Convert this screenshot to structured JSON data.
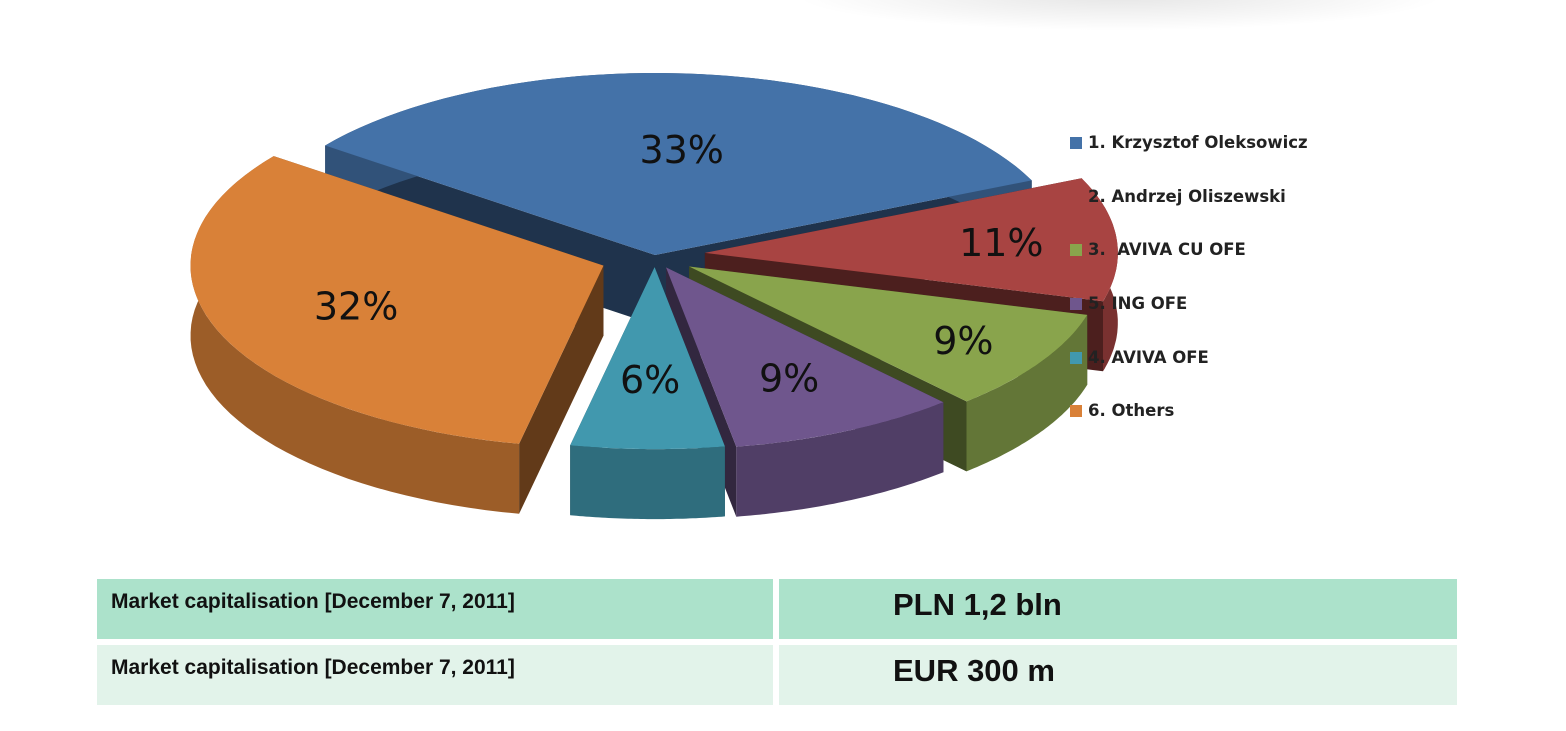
{
  "chart_data": {
    "type": "pie",
    "title": "",
    "slices": [
      {
        "label": "1. Krzysztof Oleksowicz",
        "value": 33,
        "display": "33%",
        "color": "#4472a8"
      },
      {
        "label": "2. Andrzej Oliszewski",
        "value": 11,
        "display": "11%",
        "color": "#a84442"
      },
      {
        "label": "3.  AVIVA CU OFE",
        "value": 9,
        "display": "9%",
        "color": "#89a44c"
      },
      {
        "label": "5. ING OFE",
        "value": 9,
        "display": "9%",
        "color": "#6f568d"
      },
      {
        "label": "4. AVIVA OFE",
        "value": 6,
        "display": "6%",
        "color": "#4198ae"
      },
      {
        "label": "6. Others",
        "value": 32,
        "display": "32%",
        "color": "#d98138"
      }
    ],
    "legend": {
      "placement": "right",
      "entries": [
        "1. Krzysztof Oleksowicz",
        "2. Andrzej Oliszewski",
        "3.  AVIVA CU OFE",
        "5. ING OFE",
        "4. AVIVA OFE",
        "6. Others"
      ]
    },
    "style": "3D exploded pie"
  },
  "table": {
    "rows": [
      {
        "label": "Market capitalisation [December 7, 2011]",
        "value": "PLN 1,2 bln",
        "bg": "#ace2cb"
      },
      {
        "label": "Market capitalisation [December 7, 2011]",
        "value": "EUR 300 m",
        "bg": "#e2f3ea"
      }
    ]
  }
}
